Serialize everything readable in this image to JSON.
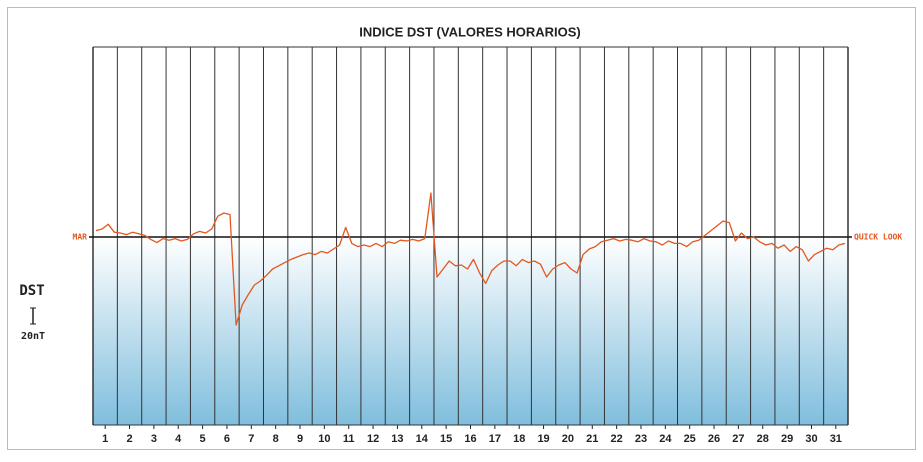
{
  "chart_data": {
    "type": "line",
    "title": "INDICE DST (VALORES HORARIOS)",
    "ylabel": "DST",
    "annotations": {
      "left": "MAR",
      "right": "QUICK LOOK"
    },
    "scale_bar": {
      "value": 20,
      "label": "20nT"
    },
    "xlim": [
      0,
      31
    ],
    "ylim": [
      -235,
      237.5
    ],
    "xticks": [
      {
        "value": 0.5,
        "label": "1"
      },
      {
        "value": 1.5,
        "label": "2"
      },
      {
        "value": 2.5,
        "label": "3"
      },
      {
        "value": 3.5,
        "label": "4"
      },
      {
        "value": 4.5,
        "label": "5"
      },
      {
        "value": 5.5,
        "label": "6"
      },
      {
        "value": 6.5,
        "label": "7"
      },
      {
        "value": 7.5,
        "label": "8"
      },
      {
        "value": 8.5,
        "label": "9"
      },
      {
        "value": 9.5,
        "label": "10"
      },
      {
        "value": 10.5,
        "label": "11"
      },
      {
        "value": 11.5,
        "label": "12"
      },
      {
        "value": 12.5,
        "label": "13"
      },
      {
        "value": 13.5,
        "label": "14"
      },
      {
        "value": 14.5,
        "label": "15"
      },
      {
        "value": 15.5,
        "label": "16"
      },
      {
        "value": 16.5,
        "label": "17"
      },
      {
        "value": 17.5,
        "label": "18"
      },
      {
        "value": 18.5,
        "label": "19"
      },
      {
        "value": 19.5,
        "label": "20"
      },
      {
        "value": 20.5,
        "label": "21"
      },
      {
        "value": 21.5,
        "label": "22"
      },
      {
        "value": 22.5,
        "label": "23"
      },
      {
        "value": 23.5,
        "label": "24"
      },
      {
        "value": 24.5,
        "label": "25"
      },
      {
        "value": 25.5,
        "label": "26"
      },
      {
        "value": 26.5,
        "label": "27"
      },
      {
        "value": 27.5,
        "label": "28"
      },
      {
        "value": 28.5,
        "label": "29"
      },
      {
        "value": 29.5,
        "label": "30"
      },
      {
        "value": 30.5,
        "label": "31"
      }
    ],
    "x": [
      0.125,
      0.375,
      0.625,
      0.875,
      1.125,
      1.375,
      1.625,
      1.875,
      2.125,
      2.375,
      2.625,
      2.875,
      3.125,
      3.375,
      3.625,
      3.875,
      4.125,
      4.375,
      4.625,
      4.875,
      5.125,
      5.375,
      5.625,
      5.875,
      6.125,
      6.375,
      6.625,
      6.875,
      7.125,
      7.375,
      7.625,
      7.875,
      8.125,
      8.375,
      8.625,
      8.875,
      9.125,
      9.375,
      9.625,
      9.875,
      10.125,
      10.375,
      10.625,
      10.875,
      11.125,
      11.375,
      11.625,
      11.875,
      12.125,
      12.375,
      12.625,
      12.875,
      13.125,
      13.375,
      13.625,
      13.875,
      14.125,
      14.375,
      14.625,
      14.875,
      15.125,
      15.375,
      15.625,
      15.875,
      16.125,
      16.375,
      16.625,
      16.875,
      17.125,
      17.375,
      17.625,
      17.875,
      18.125,
      18.375,
      18.625,
      18.875,
      19.125,
      19.375,
      19.625,
      19.875,
      20.125,
      20.375,
      20.625,
      20.875,
      21.125,
      21.375,
      21.625,
      21.875,
      22.125,
      22.375,
      22.625,
      22.875,
      23.125,
      23.375,
      23.625,
      23.875,
      24.125,
      24.375,
      24.625,
      24.875,
      25.125,
      25.375,
      25.625,
      25.875,
      26.125,
      26.375,
      26.625,
      26.875,
      27.125,
      27.375,
      27.625,
      27.875,
      28.125,
      28.375,
      28.625,
      28.875,
      29.125,
      29.375,
      29.625,
      29.875,
      30.125,
      30.375,
      30.625,
      30.875
    ],
    "series": [
      {
        "name": "DST",
        "color": "#e2581f",
        "values": [
          8,
          10,
          16,
          6,
          5,
          3,
          6,
          4,
          2,
          -3,
          -7,
          -2,
          -4,
          -2,
          -5,
          -3,
          4,
          7,
          5,
          10,
          26,
          30,
          28,
          -110,
          -85,
          -72,
          -60,
          -55,
          -48,
          -40,
          -36,
          -32,
          -28,
          -25,
          -22,
          -20,
          -22,
          -18,
          -20,
          -15,
          -10,
          12,
          -8,
          -12,
          -10,
          -12,
          -8,
          -12,
          -6,
          -8,
          -4,
          -5,
          -3,
          -5,
          -2,
          55,
          -50,
          -40,
          -30,
          -36,
          -35,
          -40,
          -28,
          -45,
          -58,
          -42,
          -35,
          -30,
          -30,
          -36,
          -28,
          -32,
          -30,
          -34,
          -50,
          -40,
          -35,
          -32,
          -40,
          -45,
          -22,
          -15,
          -12,
          -6,
          -4,
          -2,
          -5,
          -3,
          -4,
          -6,
          -2,
          -5,
          -6,
          -10,
          -5,
          -8,
          -8,
          -12,
          -6,
          -4,
          2,
          8,
          14,
          20,
          18,
          -5,
          5,
          -2,
          0,
          -6,
          -10,
          -8,
          -14,
          -10,
          -18,
          -12,
          -16,
          -30,
          -22,
          -18,
          -14,
          -16,
          -10,
          -8
        ]
      }
    ]
  }
}
